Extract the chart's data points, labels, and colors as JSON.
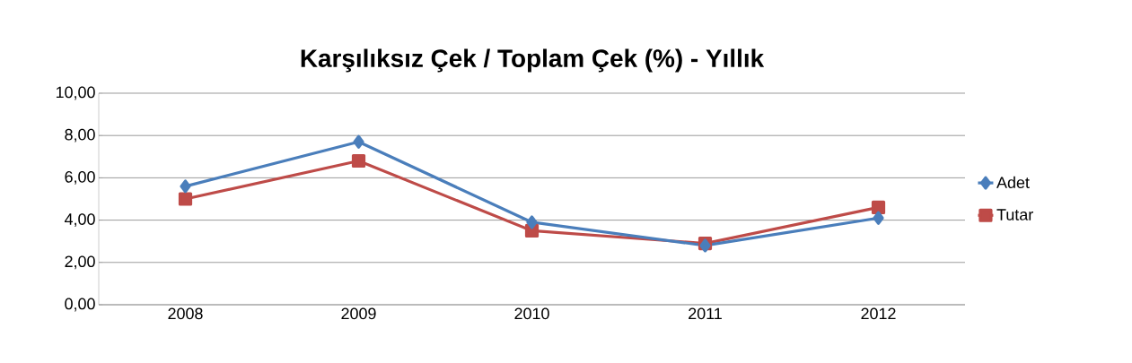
{
  "chart_data": {
    "type": "line",
    "title": "Karşılıksız Çek / Toplam Çek (%) - Yıllık",
    "categories": [
      "2008",
      "2009",
      "2010",
      "2011",
      "2012"
    ],
    "series": [
      {
        "name": "Adet",
        "color": "#4a7ebb",
        "marker": "diamond",
        "values": [
          5.6,
          7.7,
          3.9,
          2.8,
          4.1
        ]
      },
      {
        "name": "Tutar",
        "color": "#be4b48",
        "marker": "square",
        "values": [
          5.0,
          6.8,
          3.5,
          2.9,
          4.6
        ]
      }
    ],
    "ylim": [
      0,
      10
    ],
    "yticks": [
      {
        "value": 0,
        "label": "0,00"
      },
      {
        "value": 2,
        "label": "2,00"
      },
      {
        "value": 4,
        "label": "4,00"
      },
      {
        "value": 6,
        "label": "6,00"
      },
      {
        "value": 8,
        "label": "8,00"
      },
      {
        "value": 10,
        "label": "10,00"
      }
    ],
    "grid": "y",
    "legend": "right",
    "line_style": "solid"
  }
}
